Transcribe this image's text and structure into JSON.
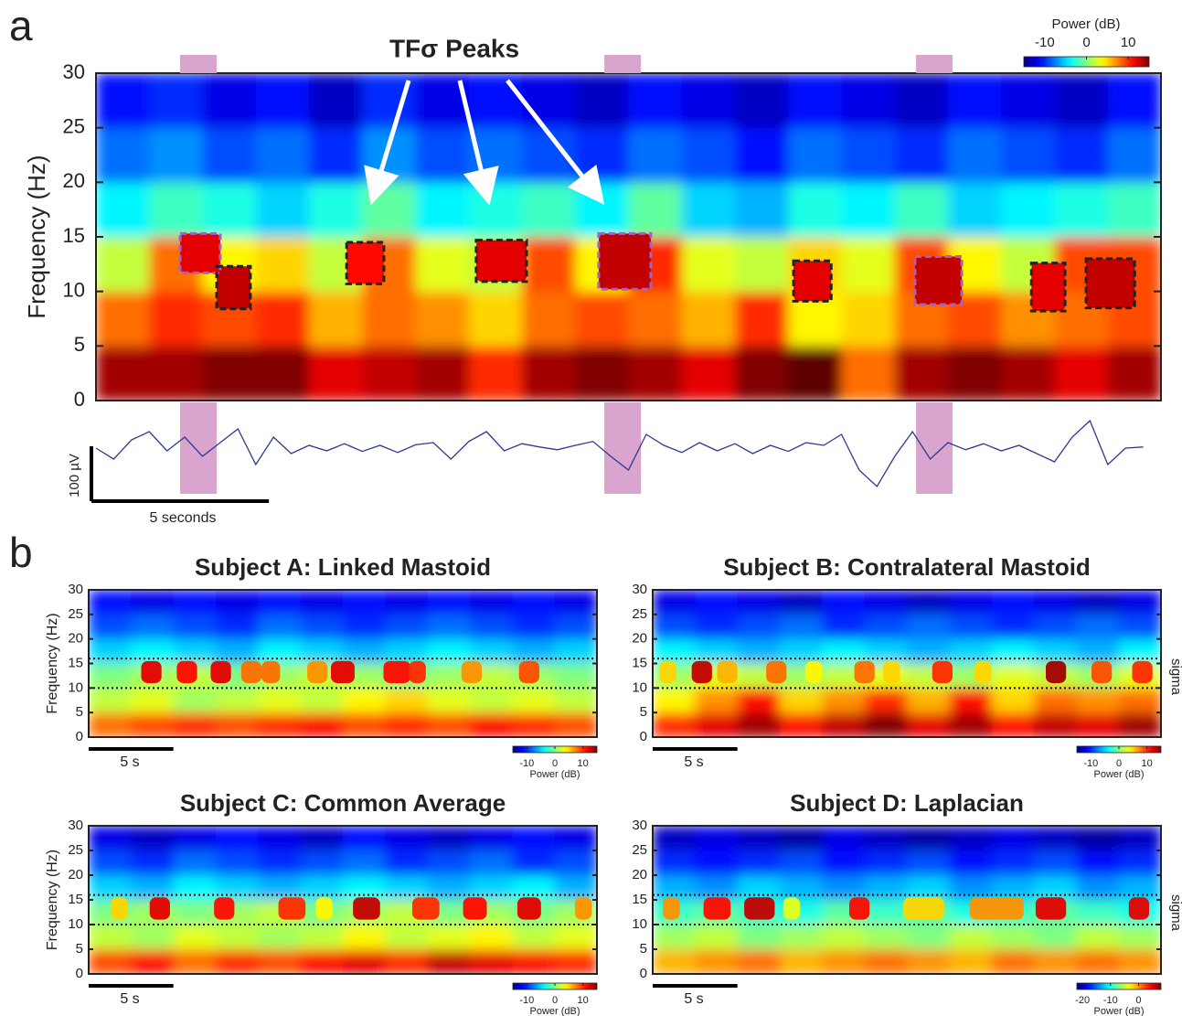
{
  "chart_data": [
    {
      "type": "heatmap",
      "panel_label": "a",
      "title": "TFσ Peaks",
      "ylabel": "Frequency (Hz)",
      "xlim": [
        0,
        30
      ],
      "ylim": [
        0,
        30
      ],
      "yticks": [
        0,
        5,
        10,
        15,
        20,
        25,
        30
      ],
      "x_bins": [
        0,
        1.5,
        3,
        4.5,
        6,
        7.5,
        9,
        10.5,
        12,
        13.5,
        15,
        16.5,
        18,
        19.5,
        21,
        22.5,
        24,
        25.5,
        27,
        28.5,
        30
      ],
      "y_bins": [
        0,
        5,
        10,
        15,
        20,
        25,
        30
      ],
      "values": [
        [
          14,
          14,
          15,
          15,
          12,
          13,
          14,
          10,
          14,
          15,
          14,
          12,
          15,
          16,
          8,
          14,
          15,
          14,
          12,
          14
        ],
        [
          8,
          10,
          9,
          10,
          6,
          8,
          7,
          5,
          8,
          9,
          8,
          6,
          10,
          4,
          5,
          8,
          9,
          7,
          8,
          9
        ],
        [
          2,
          8,
          4,
          5,
          2,
          8,
          3,
          2,
          9,
          4,
          10,
          3,
          2,
          5,
          3,
          9,
          4,
          2,
          9,
          9
        ],
        [
          -4,
          -2,
          -3,
          -5,
          -3,
          -1,
          -4,
          -3,
          -2,
          -4,
          -1,
          -5,
          -6,
          -3,
          -4,
          -2,
          -5,
          -4,
          -3,
          -2
        ],
        [
          -8,
          -7,
          -9,
          -8,
          -10,
          -7,
          -9,
          -8,
          -9,
          -10,
          -8,
          -9,
          -11,
          -8,
          -9,
          -10,
          -8,
          -9,
          -10,
          -8
        ],
        [
          -11,
          -10,
          -12,
          -11,
          -13,
          -10,
          -12,
          -11,
          -12,
          -13,
          -11,
          -12,
          -13,
          -11,
          -12,
          -13,
          -11,
          -12,
          -13,
          -11
        ]
      ],
      "clim": [
        -15,
        15
      ],
      "colorbar": {
        "title": "Power (dB)",
        "ticks": [
          -10,
          0,
          10
        ]
      },
      "boxes": [
        {
          "t": [
            2.37,
            3.5
          ],
          "f": [
            11.7,
            15.3
          ],
          "power": 12,
          "color": "#a064c8"
        },
        {
          "t": [
            3.4,
            4.35
          ],
          "f": [
            8.4,
            12.3
          ],
          "power": 13,
          "color": "#222222"
        },
        {
          "t": [
            7.06,
            8.11
          ],
          "f": [
            10.7,
            14.5
          ],
          "power": 11,
          "color": "#222222"
        },
        {
          "t": [
            10.71,
            12.13
          ],
          "f": [
            10.9,
            14.7
          ],
          "power": 12,
          "color": "#222222"
        },
        {
          "t": [
            14.16,
            15.63
          ],
          "f": [
            10.2,
            15.3
          ],
          "power": 13,
          "color": "#a064c8"
        },
        {
          "t": [
            19.65,
            20.71
          ],
          "f": [
            9.1,
            12.8
          ],
          "power": 12,
          "color": "#222222"
        },
        {
          "t": [
            23.07,
            24.39
          ],
          "f": [
            8.8,
            13.2
          ],
          "power": 13,
          "color": "#a064c8"
        },
        {
          "t": [
            26.35,
            27.3
          ],
          "f": [
            8.2,
            12.6
          ],
          "power": 12,
          "color": "#222222"
        },
        {
          "t": [
            27.89,
            29.26
          ],
          "f": [
            8.5,
            13
          ],
          "power": 13,
          "color": "#222222"
        }
      ],
      "highlights": [
        [
          2.37,
          3.4
        ],
        [
          14.32,
          15.35
        ],
        [
          23.1,
          24.13
        ]
      ],
      "highlight_color": "#d9a5cf",
      "trace": {
        "color": "#2b3990",
        "x": [
          0,
          0.5,
          1,
          1.5,
          2,
          2.5,
          3,
          3.5,
          4,
          4.5,
          5,
          5.5,
          6,
          6.5,
          7,
          7.5,
          8,
          8.5,
          9,
          9.5,
          10,
          10.5,
          11,
          11.5,
          12,
          12.5,
          13,
          13.5,
          14,
          14.5,
          15,
          15.5,
          16,
          16.5,
          17,
          17.5,
          18,
          18.5,
          19,
          19.5,
          20,
          20.5,
          21,
          21.5,
          22,
          22.5,
          23,
          23.5,
          24,
          24.5,
          25,
          25.5,
          26,
          26.5,
          27,
          27.5,
          28,
          28.5,
          29,
          29.5
        ],
        "values": [
          0,
          -20,
          15,
          30,
          -5,
          20,
          -15,
          10,
          35,
          -30,
          20,
          -10,
          5,
          -5,
          8,
          -6,
          5,
          -8,
          6,
          10,
          -20,
          12,
          30,
          -5,
          8,
          2,
          -3,
          5,
          12,
          -15,
          -40,
          25,
          5,
          -8,
          10,
          -5,
          8,
          -10,
          5,
          -6,
          10,
          5,
          25,
          -40,
          -70,
          -15,
          30,
          -20,
          10,
          -3,
          8,
          -5,
          5,
          -10,
          -25,
          20,
          50,
          -30,
          0,
          2
        ]
      },
      "scalebars": {
        "time": {
          "value": 5,
          "label": "5 seconds"
        },
        "amplitude": {
          "value": 100,
          "label": "100 µV"
        }
      }
    },
    {
      "type": "heatmap",
      "panel_label": "b",
      "title": "Subject A: Linked Mastoid",
      "ylabel": "Frequency (Hz)",
      "xlim": [
        0,
        30
      ],
      "ylim": [
        0,
        30
      ],
      "yticks": [
        0,
        5,
        10,
        15,
        20,
        25,
        30
      ],
      "x_bins": [
        0,
        2.5,
        5,
        7.5,
        10,
        12.5,
        15,
        17.5,
        20,
        22.5,
        25,
        27.5,
        30
      ],
      "y_bins": [
        0,
        5,
        10,
        15,
        20,
        25,
        30
      ],
      "values": [
        [
          8,
          9,
          10,
          9,
          10,
          11,
          9,
          10,
          9,
          11,
          10,
          9
        ],
        [
          2,
          3,
          1,
          2,
          3,
          2,
          4,
          5,
          3,
          2,
          3,
          2
        ],
        [
          0,
          1,
          2,
          0,
          1,
          2,
          1,
          0,
          1,
          2,
          1,
          0
        ],
        [
          -5,
          -4,
          -5,
          -6,
          -4,
          -5,
          -6,
          -5,
          -4,
          -5,
          -6,
          -5
        ],
        [
          -9,
          -8,
          -9,
          -10,
          -8,
          -9,
          -10,
          -9,
          -8,
          -9,
          -10,
          -9
        ],
        [
          -11,
          -12,
          -11,
          -12,
          -11,
          -12,
          -11,
          -12,
          -11,
          -12,
          -11,
          -12
        ]
      ],
      "clim": [
        -15,
        15
      ],
      "colorbar": {
        "title": "Power (dB)",
        "ticks": [
          -10,
          0,
          10
        ]
      },
      "sigma_band": [
        10,
        16
      ],
      "peak_f": [
        11,
        15.5
      ],
      "peaks": [
        {
          "t": [
            3.1,
            4.3
          ],
          "power": 12
        },
        {
          "t": [
            5.2,
            6.4
          ],
          "power": 11
        },
        {
          "t": [
            7.2,
            8.4
          ],
          "power": 12
        },
        {
          "t": [
            9,
            10.2
          ],
          "power": 8
        },
        {
          "t": [
            10.2,
            11.3
          ],
          "power": 8
        },
        {
          "t": [
            12.9,
            14.1
          ],
          "power": 7
        },
        {
          "t": [
            14.3,
            15.7
          ],
          "power": 12
        },
        {
          "t": [
            17.4,
            19
          ],
          "power": 11
        },
        {
          "t": [
            18.9,
            19.9
          ],
          "power": 10
        },
        {
          "t": [
            22,
            23.2
          ],
          "power": 7
        },
        {
          "t": [
            25.4,
            26.6
          ],
          "power": 9
        }
      ],
      "scalebar": {
        "value": 5,
        "label": "5 s"
      }
    },
    {
      "type": "heatmap",
      "title": "Subject B: Contralateral Mastoid",
      "sigma_label": "sigma",
      "xlim": [
        0,
        30
      ],
      "ylim": [
        0,
        30
      ],
      "yticks": [
        0,
        5,
        10,
        15,
        20,
        25,
        30
      ],
      "x_bins": [
        0,
        2.5,
        5,
        7.5,
        10,
        12.5,
        15,
        17.5,
        20,
        22.5,
        25,
        27.5,
        30
      ],
      "y_bins": [
        0,
        5,
        10,
        15,
        20,
        25,
        30
      ],
      "values": [
        [
          10,
          12,
          14,
          11,
          13,
          15,
          12,
          14,
          11,
          13,
          12,
          14
        ],
        [
          4,
          7,
          11,
          5,
          7,
          10,
          6,
          11,
          5,
          8,
          7,
          8
        ],
        [
          1,
          3,
          2,
          1,
          2,
          3,
          2,
          1,
          3,
          2,
          1,
          3
        ],
        [
          -4,
          -5,
          -6,
          -5,
          -4,
          -5,
          -6,
          -5,
          -4,
          -5,
          -6,
          -4
        ],
        [
          -9,
          -10,
          -9,
          -8,
          -10,
          -9,
          -8,
          -9,
          -10,
          -9,
          -8,
          -9
        ],
        [
          -12,
          -11,
          -12,
          -13,
          -11,
          -12,
          -13,
          -12,
          -11,
          -12,
          -13,
          -12
        ]
      ],
      "clim": [
        -15,
        15
      ],
      "colorbar": {
        "title": "Power (dB)",
        "ticks": [
          -10,
          0,
          10
        ]
      },
      "sigma_band": [
        10,
        16
      ],
      "peak_f": [
        11,
        15.5
      ],
      "peaks": [
        {
          "t": [
            0.4,
            1.4
          ],
          "power": 5
        },
        {
          "t": [
            2.3,
            3.5
          ],
          "power": 13
        },
        {
          "t": [
            3.8,
            5
          ],
          "power": 6
        },
        {
          "t": [
            6.7,
            7.9
          ],
          "power": 8
        },
        {
          "t": [
            9,
            10
          ],
          "power": 4
        },
        {
          "t": [
            11.9,
            13.1
          ],
          "power": 8
        },
        {
          "t": [
            13.6,
            14.6
          ],
          "power": 5
        },
        {
          "t": [
            16.5,
            17.7
          ],
          "power": 10
        },
        {
          "t": [
            19,
            20
          ],
          "power": 5
        },
        {
          "t": [
            23.2,
            24.4
          ],
          "power": 14
        },
        {
          "t": [
            25.9,
            27.1
          ],
          "power": 9
        },
        {
          "t": [
            28.3,
            29.5
          ],
          "power": 10
        }
      ],
      "scalebar": {
        "value": 5,
        "label": "5 s"
      }
    },
    {
      "type": "heatmap",
      "title": "Subject C: Common Average",
      "ylabel": "Frequency (Hz)",
      "xlim": [
        0,
        30
      ],
      "ylim": [
        0,
        30
      ],
      "yticks": [
        0,
        5,
        10,
        15,
        20,
        25,
        30
      ],
      "x_bins": [
        0,
        2.5,
        5,
        7.5,
        10,
        12.5,
        15,
        17.5,
        20,
        22.5,
        25,
        27.5,
        30
      ],
      "y_bins": [
        0,
        5,
        10,
        15,
        20,
        25,
        30
      ],
      "values": [
        [
          9,
          11,
          8,
          10,
          9,
          11,
          12,
          10,
          13,
          12,
          11,
          10
        ],
        [
          2,
          1,
          3,
          2,
          1,
          2,
          4,
          2,
          3,
          4,
          2,
          3
        ],
        [
          0,
          1,
          0,
          1,
          2,
          0,
          1,
          2,
          0,
          1,
          0,
          1
        ],
        [
          -5,
          -6,
          -4,
          -5,
          -6,
          -5,
          -4,
          -5,
          -6,
          -5,
          -4,
          -6
        ],
        [
          -9,
          -10,
          -8,
          -9,
          -10,
          -9,
          -8,
          -10,
          -9,
          -8,
          -10,
          -9
        ],
        [
          -12,
          -13,
          -12,
          -11,
          -12,
          -13,
          -11,
          -12,
          -13,
          -12,
          -11,
          -12
        ]
      ],
      "clim": [
        -15,
        15
      ],
      "colorbar": {
        "title": "Power (dB)",
        "ticks": [
          -10,
          0,
          10
        ]
      },
      "sigma_band": [
        10,
        16
      ],
      "peak_f": [
        11,
        15.5
      ],
      "peaks": [
        {
          "t": [
            1.3,
            2.3
          ],
          "power": 5
        },
        {
          "t": [
            3.6,
            4.8
          ],
          "power": 12
        },
        {
          "t": [
            7.4,
            8.6
          ],
          "power": 11
        },
        {
          "t": [
            11.2,
            12.8
          ],
          "power": 10
        },
        {
          "t": [
            13.4,
            14.4
          ],
          "power": 4
        },
        {
          "t": [
            15.6,
            17.2
          ],
          "power": 13
        },
        {
          "t": [
            19.1,
            20.7
          ],
          "power": 10
        },
        {
          "t": [
            22.1,
            23.5
          ],
          "power": 11
        },
        {
          "t": [
            25.3,
            26.7
          ],
          "power": 12
        },
        {
          "t": [
            28.7,
            29.7
          ],
          "power": 7
        }
      ],
      "scalebar": {
        "value": 5,
        "label": "5 s"
      }
    },
    {
      "type": "heatmap",
      "title": "Subject D: Laplacian",
      "sigma_label": "sigma",
      "xlim": [
        0,
        30
      ],
      "ylim": [
        0,
        30
      ],
      "yticks": [
        0,
        5,
        10,
        15,
        20,
        25,
        30
      ],
      "x_bins": [
        0,
        2.5,
        5,
        7.5,
        10,
        12.5,
        15,
        17.5,
        20,
        22.5,
        25,
        27.5,
        30
      ],
      "y_bins": [
        0,
        5,
        10,
        15,
        20,
        25,
        30
      ],
      "values": [
        [
          -1,
          0,
          1,
          -1,
          0,
          1,
          0,
          -1,
          1,
          0,
          1,
          0
        ],
        [
          -6,
          -5,
          -7,
          -6,
          -5,
          -6,
          -7,
          -5,
          -6,
          -7,
          -5,
          -6
        ],
        [
          -9,
          -8,
          -9,
          -10,
          -8,
          -9,
          -8,
          -10,
          -9,
          -8,
          -9,
          -10
        ],
        [
          -13,
          -14,
          -12,
          -13,
          -14,
          -13,
          -12,
          -14,
          -13,
          -12,
          -14,
          -13
        ],
        [
          -17,
          -18,
          -17,
          -16,
          -18,
          -17,
          -16,
          -18,
          -17,
          -16,
          -18,
          -17
        ],
        [
          -20,
          -19,
          -20,
          -21,
          -19,
          -20,
          -21,
          -20,
          -19,
          -20,
          -21,
          -20
        ]
      ],
      "clim": [
        -22,
        8
      ],
      "colorbar": {
        "title": "Power (dB)",
        "ticks": [
          -20,
          -10,
          0
        ]
      },
      "sigma_band": [
        10,
        16
      ],
      "peak_f": [
        11,
        15.5
      ],
      "peaks": [
        {
          "t": [
            0.6,
            1.6
          ],
          "power": 0
        },
        {
          "t": [
            3,
            4.6
          ],
          "power": 4
        },
        {
          "t": [
            5.4,
            7.2
          ],
          "power": 6
        },
        {
          "t": [
            7.7,
            8.7
          ],
          "power": -4
        },
        {
          "t": [
            11.6,
            12.8
          ],
          "power": 4
        },
        {
          "t": [
            14.8,
            17.2
          ],
          "power": -2
        },
        {
          "t": [
            18.7,
            21.9
          ],
          "power": 0
        },
        {
          "t": [
            22.6,
            24.4
          ],
          "power": 5
        },
        {
          "t": [
            28.1,
            29.3
          ],
          "power": 5
        }
      ],
      "scalebar": {
        "value": 5,
        "label": "5 s"
      }
    }
  ]
}
